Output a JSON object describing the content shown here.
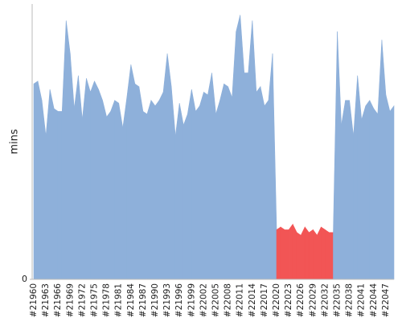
{
  "chart_data": {
    "type": "area",
    "ylabel": "mins",
    "categories": [
      "#21960",
      null,
      null,
      "#21963",
      null,
      null,
      "#21966",
      null,
      null,
      "#21969",
      null,
      null,
      "#21972",
      null,
      null,
      "#21975",
      null,
      null,
      "#21978",
      null,
      null,
      "#21981",
      null,
      null,
      "#21984",
      null,
      null,
      "#21987",
      null,
      null,
      "#21990",
      null,
      null,
      "#21993",
      null,
      null,
      "#21996",
      null,
      null,
      "#21999",
      null,
      null,
      "#22002",
      null,
      null,
      "#22005",
      null,
      null,
      "#22008",
      null,
      null,
      "#22011",
      null,
      null,
      "#22014",
      null,
      null,
      "#22017",
      null,
      null,
      "#22020",
      null,
      null,
      "#22023",
      null,
      null,
      "#22026",
      null,
      null,
      "#22029",
      null,
      null,
      "#22032",
      null,
      null,
      "#22035",
      null,
      null,
      "#22038",
      null,
      null,
      "#22041",
      null,
      null,
      "#22044",
      null,
      null,
      "#22047",
      null,
      null
    ],
    "values": [
      71,
      72,
      65,
      52,
      69,
      62,
      61,
      61,
      94,
      82,
      62,
      74,
      58,
      73,
      68,
      72,
      69,
      65,
      59,
      61,
      65,
      64,
      55,
      66,
      78,
      71,
      70,
      61,
      60,
      65,
      63,
      65,
      68,
      82,
      70,
      52,
      64,
      56,
      60,
      69,
      61,
      63,
      68,
      67,
      75,
      60,
      65,
      71,
      70,
      66,
      90,
      96,
      75,
      75,
      94,
      68,
      70,
      63,
      65,
      82,
      18,
      19,
      18,
      18,
      20,
      17,
      16,
      19,
      17,
      18,
      16,
      19,
      18,
      17,
      17,
      90,
      56,
      65,
      65,
      52,
      74,
      58,
      63,
      65,
      62,
      60,
      87,
      67,
      61,
      63
    ],
    "colors": [
      "#8eb0da",
      "#8eb0da",
      "#8eb0da",
      "#8eb0da",
      "#8eb0da",
      "#8eb0da",
      "#8eb0da",
      "#8eb0da",
      "#8eb0da",
      "#8eb0da",
      "#8eb0da",
      "#8eb0da",
      "#8eb0da",
      "#8eb0da",
      "#8eb0da",
      "#8eb0da",
      "#8eb0da",
      "#8eb0da",
      "#8eb0da",
      "#8eb0da",
      "#8eb0da",
      "#8eb0da",
      "#8eb0da",
      "#8eb0da",
      "#8eb0da",
      "#8eb0da",
      "#8eb0da",
      "#8eb0da",
      "#8eb0da",
      "#8eb0da",
      "#8eb0da",
      "#8eb0da",
      "#8eb0da",
      "#8eb0da",
      "#8eb0da",
      "#8eb0da",
      "#8eb0da",
      "#8eb0da",
      "#8eb0da",
      "#8eb0da",
      "#8eb0da",
      "#8eb0da",
      "#8eb0da",
      "#8eb0da",
      "#8eb0da",
      "#8eb0da",
      "#8eb0da",
      "#8eb0da",
      "#8eb0da",
      "#8eb0da",
      "#8eb0da",
      "#8eb0da",
      "#8eb0da",
      "#8eb0da",
      "#8eb0da",
      "#8eb0da",
      "#8eb0da",
      "#8eb0da",
      "#8eb0da",
      "#8eb0da",
      "#f25555",
      "#f25555",
      "#f25555",
      "#f25555",
      "#f25555",
      "#f25555",
      "#f25555",
      "#f25555",
      "#f25555",
      "#f25555",
      "#f25555",
      "#f25555",
      "#f25555",
      "#f25555",
      "#f25555",
      "#8eb0da",
      "#8eb0da",
      "#8eb0da",
      "#8eb0da",
      "#8eb0da",
      "#8eb0da",
      "#8eb0da",
      "#8eb0da",
      "#8eb0da",
      "#8eb0da",
      "#8eb0da",
      "#8eb0da",
      "#8eb0da",
      "#8eb0da",
      "#8eb0da"
    ],
    "ylim": [
      0,
      100
    ],
    "yticks": [
      0
    ]
  }
}
